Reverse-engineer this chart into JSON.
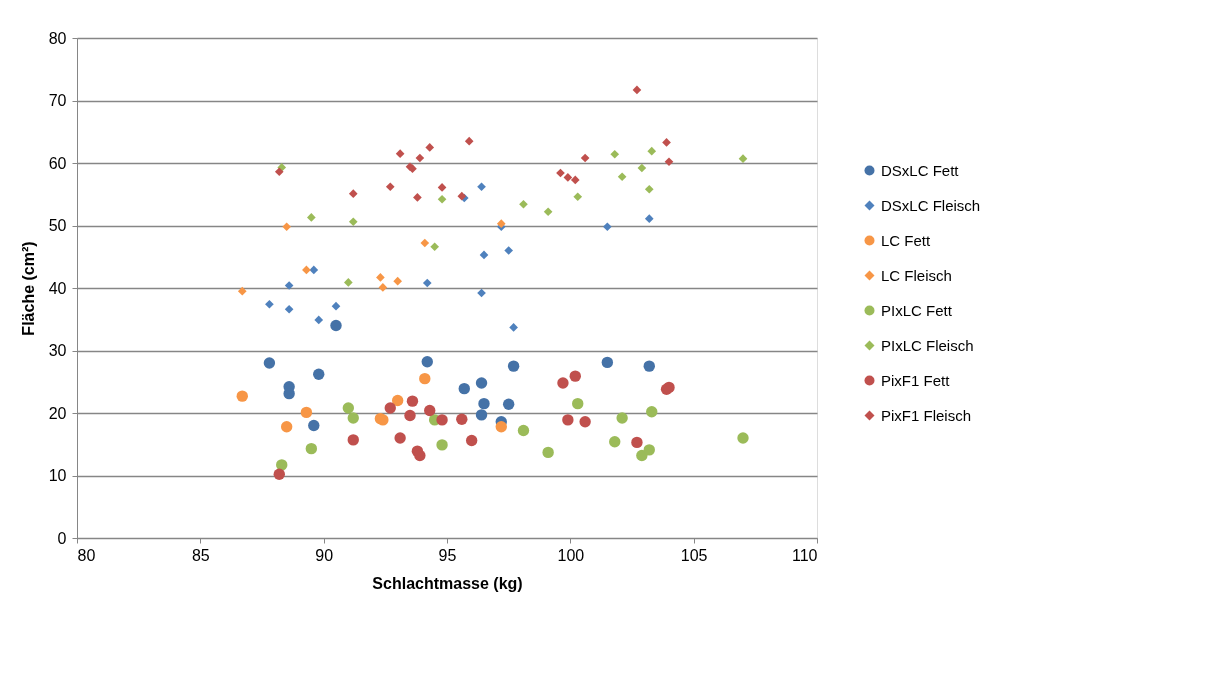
{
  "chart_data": {
    "type": "scatter",
    "xlabel": "Schlachtmasse (kg)",
    "ylabel": "Fläche (cm²)",
    "xlim": [
      80,
      110
    ],
    "xticks": [
      80,
      85,
      90,
      95,
      100,
      105,
      110
    ],
    "ylim": [
      0,
      80
    ],
    "yticks": [
      0,
      10,
      20,
      30,
      40,
      50,
      60,
      70,
      80
    ],
    "grid": "y",
    "legend": "right",
    "series": [
      {
        "name": "DSxLC Fett",
        "color": "#4572a7",
        "marker": "circle",
        "x": [
          87.8,
          88.6,
          88.6,
          89.8,
          89.6,
          90.5,
          94.2,
          95.7,
          96.4,
          96.5,
          96.4,
          97.5,
          97.2,
          97.7,
          101.5,
          103.2
        ],
        "values": [
          28.0,
          24.2,
          23.1,
          26.2,
          18.0,
          34.0,
          28.2,
          23.9,
          24.8,
          21.5,
          19.7,
          21.4,
          18.6,
          27.5,
          28.1,
          27.5
        ]
      },
      {
        "name": "DSxLC  Fleisch",
        "color": "#4f81bd",
        "marker": "diamond",
        "x": [
          87.8,
          88.6,
          88.6,
          89.6,
          89.8,
          90.5,
          94.2,
          95.7,
          96.4,
          97.2,
          96.5,
          97.5,
          96.4,
          97.7,
          101.5,
          103.2
        ],
        "values": [
          37.4,
          40.4,
          36.6,
          42.9,
          34.9,
          37.1,
          40.8,
          54.4,
          56.2,
          49.8,
          45.3,
          46.0,
          39.2,
          33.7,
          49.8,
          51.1
        ]
      },
      {
        "name": "LC Fett",
        "color": "#f79646",
        "marker": "circle",
        "x": [
          86.7,
          88.5,
          89.3,
          92.3,
          92.4,
          93.0,
          94.1,
          97.2
        ],
        "values": [
          22.7,
          17.8,
          20.1,
          19.1,
          18.9,
          22.0,
          25.5,
          17.8
        ]
      },
      {
        "name": "LC  Fleisch",
        "color": "#f79646",
        "marker": "diamond",
        "x": [
          86.7,
          88.5,
          89.3,
          92.3,
          92.4,
          93.0,
          94.1,
          97.2
        ],
        "values": [
          39.5,
          49.8,
          42.9,
          41.7,
          40.1,
          41.1,
          47.2,
          50.3
        ]
      },
      {
        "name": "PIxLC Fett",
        "color": "#9bbb59",
        "marker": "circle",
        "x": [
          88.3,
          89.5,
          91.0,
          91.2,
          94.5,
          94.8,
          98.1,
          99.1,
          100.3,
          101.8,
          102.1,
          102.9,
          103.2,
          103.3,
          107.0
        ],
        "values": [
          11.7,
          14.3,
          20.8,
          19.2,
          18.9,
          14.9,
          17.2,
          13.7,
          21.5,
          15.4,
          19.2,
          13.2,
          14.1,
          20.2,
          16.0
        ]
      },
      {
        "name": "PIxLC  Fleisch",
        "color": "#9bbb59",
        "marker": "diamond",
        "x": [
          88.3,
          89.5,
          91.2,
          91.0,
          94.8,
          94.5,
          98.1,
          99.1,
          100.3,
          101.8,
          102.1,
          102.9,
          103.3,
          103.2,
          107.0
        ],
        "values": [
          59.3,
          51.3,
          50.6,
          40.9,
          54.2,
          46.6,
          53.4,
          52.2,
          54.6,
          61.4,
          57.8,
          59.2,
          61.9,
          55.8,
          60.7
        ]
      },
      {
        "name": "PixF1 Fett",
        "color": "#c0504d",
        "marker": "circle",
        "x": [
          88.2,
          91.2,
          92.7,
          93.1,
          93.5,
          93.6,
          93.8,
          93.9,
          94.3,
          94.8,
          95.6,
          96.0,
          99.7,
          100.2,
          99.9,
          100.6,
          102.7,
          103.9,
          104.0
        ],
        "values": [
          10.2,
          15.7,
          20.8,
          16.0,
          19.6,
          21.9,
          13.9,
          13.2,
          20.4,
          18.9,
          19.0,
          15.6,
          24.8,
          25.9,
          18.9,
          18.6,
          15.3,
          23.8,
          24.1
        ]
      },
      {
        "name": "PixF1 Fleisch",
        "color": "#c0504d",
        "marker": "diamond",
        "x": [
          88.2,
          91.2,
          93.1,
          92.7,
          93.5,
          93.6,
          93.8,
          93.9,
          94.3,
          94.8,
          95.6,
          95.9,
          102.7,
          100.6,
          99.6,
          99.9,
          100.2,
          103.9,
          104.0
        ],
        "values": [
          58.6,
          55.1,
          61.5,
          56.2,
          59.4,
          59.1,
          54.5,
          60.8,
          62.5,
          56.1,
          54.7,
          63.5,
          71.7,
          60.8,
          58.4,
          57.7,
          57.3,
          63.3,
          60.2
        ]
      }
    ]
  }
}
